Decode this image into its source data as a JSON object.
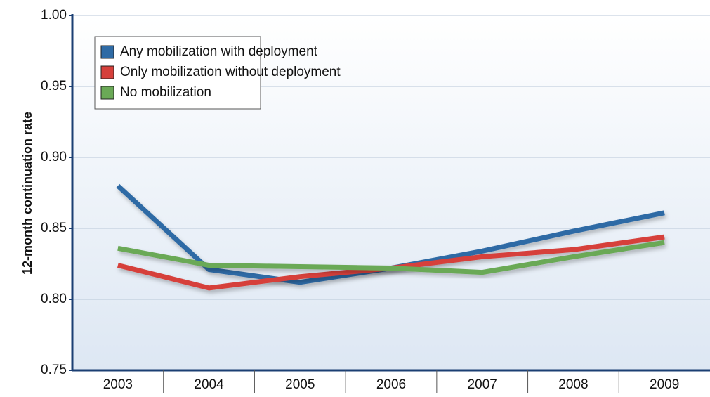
{
  "chart_data": {
    "type": "line",
    "y_label": "12-month continuation rate",
    "categories": [
      "2003",
      "2004",
      "2005",
      "2006",
      "2007",
      "2008",
      "2009"
    ],
    "series": [
      {
        "name": "Any mobilization with deployment",
        "color": "#2f6ba5",
        "values": [
          0.88,
          0.821,
          0.812,
          0.822,
          0.834,
          0.848,
          0.861
        ]
      },
      {
        "name": "Only mobilization without deployment",
        "color": "#d6403b",
        "values": [
          0.824,
          0.808,
          0.816,
          0.822,
          0.83,
          0.835,
          0.844
        ]
      },
      {
        "name": "No mobilization",
        "color": "#6aa956",
        "values": [
          0.836,
          0.824,
          0.823,
          0.822,
          0.819,
          0.83,
          0.84
        ]
      }
    ],
    "ylim": [
      0.75,
      1.0
    ],
    "yticks": [
      0.75,
      {
        "value": 0.8,
        "label": "0.80"
      },
      0.85,
      {
        "value": 0.9,
        "label": "0.90"
      },
      0.95,
      {
        "value": 1.0,
        "label": "1.00"
      }
    ],
    "grid": true,
    "legend": "top-left"
  }
}
